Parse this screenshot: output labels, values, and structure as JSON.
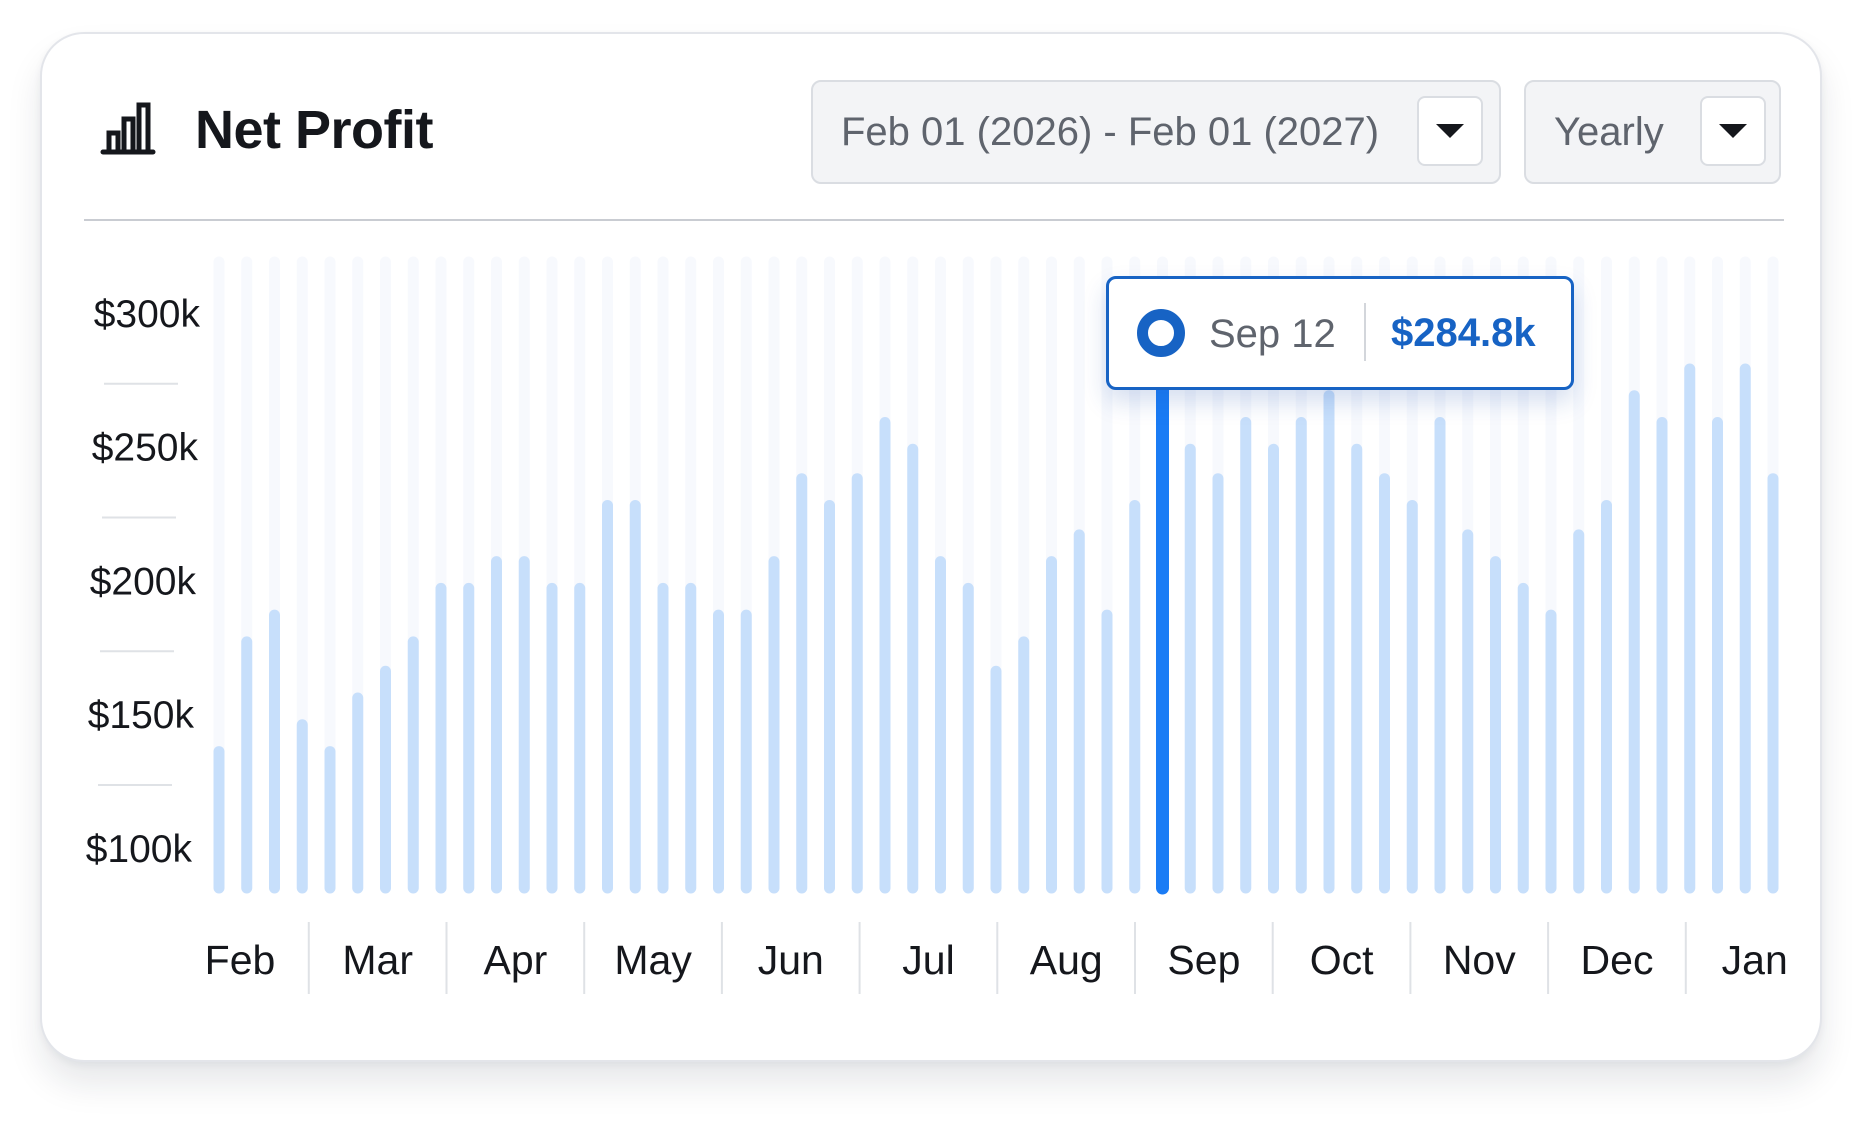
{
  "header": {
    "title": "Net Profit",
    "title_icon": "bar-chart-icon",
    "date_range": "Feb 01 (2026) - Feb 01 (2027)",
    "period": "Yearly",
    "dropdown_icon": "caret-down-icon"
  },
  "tooltip": {
    "date": "Sep 12",
    "value": "$284.8k"
  },
  "colors": {
    "bar": "#c7dffb",
    "bar_track": "#f7f9fd",
    "bar_active": "#1a7cf5",
    "accent": "#1763c4"
  },
  "chart_data": {
    "type": "bar",
    "title": "Net Profit",
    "y_ticks": [
      "$300k",
      "$250k",
      "$200k",
      "$150k",
      "$100k"
    ],
    "y_tick_values": [
      300,
      250,
      200,
      150,
      100
    ],
    "x_ticks": [
      "Feb",
      "Mar",
      "Apr",
      "May",
      "Jun",
      "Jul",
      "Aug",
      "Sep",
      "Oct",
      "Nov",
      "Dec",
      "Jan"
    ],
    "values": [
      136,
      177,
      187,
      146,
      136,
      156,
      166,
      177,
      197,
      197,
      207,
      207,
      197,
      197,
      228,
      228,
      197,
      197,
      187,
      187,
      207,
      238,
      228,
      238,
      259,
      249,
      207,
      197,
      166,
      177,
      207,
      217,
      187,
      228,
      284.8,
      249,
      238,
      259,
      249,
      259,
      269,
      249,
      238,
      228,
      259,
      217,
      207,
      197,
      187,
      217,
      228,
      269,
      259,
      279,
      259,
      279,
      238
    ],
    "highlight_index": 34,
    "highlight_label": "Sep 12",
    "highlight_value": "$284.8k",
    "ylim": [
      85,
      319
    ],
    "grid": false
  }
}
